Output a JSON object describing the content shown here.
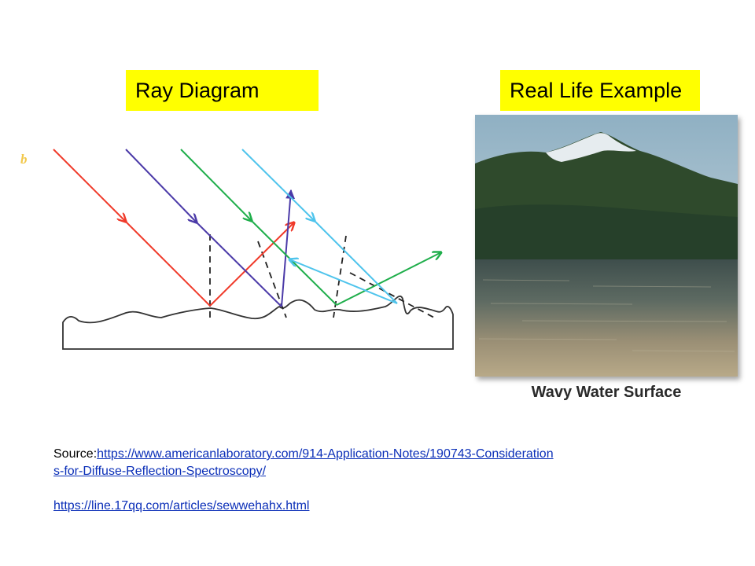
{
  "left_panel": {
    "title": "Ray Diagram",
    "figure_letter": "b"
  },
  "right_panel": {
    "title": "Real Life Example",
    "photo_caption": "Wavy Water Surface"
  },
  "sources": {
    "prefix": "Source:",
    "link1_part1": "https://www.americanlaboratory.com/914-Application-Notes/190743-Consideration",
    "link1_part2": "s-for-Diffuse-Reflection-Spectroscopy/",
    "link2": "https://line.17qq.com/articles/sewwehahx.html"
  },
  "colors": {
    "label_bg": "#ffff00",
    "ray_red": "#f03a2a",
    "ray_purple": "#4b3aa8",
    "ray_green": "#1fae4b",
    "ray_cyan": "#4fc4ec",
    "figure_letter": "#f2c84b"
  }
}
